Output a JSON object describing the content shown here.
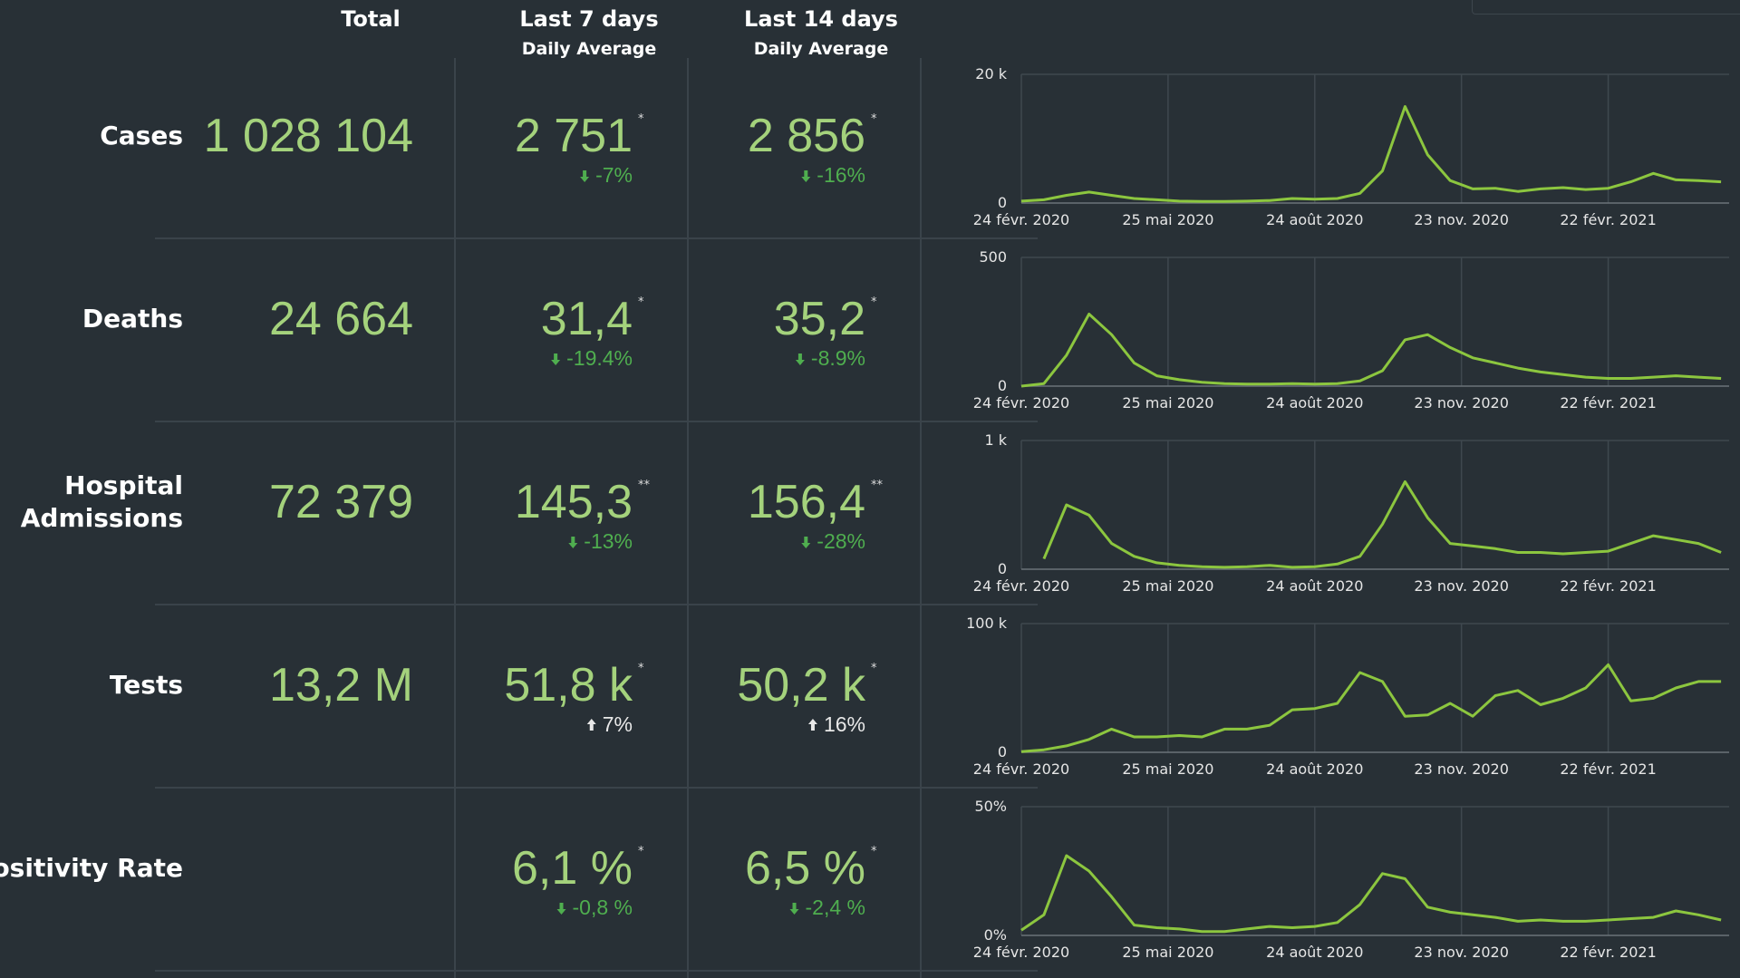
{
  "header": {
    "total": "Total",
    "last7": "Last 7 days",
    "last7_sub": "Daily Average",
    "last14": "Last 14 days",
    "last14_sub": "Daily Average"
  },
  "x": [
    "2020-02-24",
    "2020-03-09",
    "2020-03-23",
    "2020-04-06",
    "2020-04-20",
    "2020-05-04",
    "2020-05-18",
    "2020-06-01",
    "2020-06-15",
    "2020-06-29",
    "2020-07-13",
    "2020-07-27",
    "2020-08-10",
    "2020-08-24",
    "2020-09-07",
    "2020-09-21",
    "2020-10-05",
    "2020-10-19",
    "2020-11-02",
    "2020-11-16",
    "2020-11-30",
    "2020-12-14",
    "2020-12-28",
    "2021-01-11",
    "2021-01-25",
    "2021-02-08",
    "2021-02-22",
    "2021-03-08",
    "2021-03-22",
    "2021-04-05",
    "2021-04-19",
    "2021-05-03"
  ],
  "xlim": [
    "2020-02-24",
    "2021-05-08"
  ],
  "xticks": [
    {
      "value": "2020-02-24",
      "label": "24 févr. 2020"
    },
    {
      "value": "2020-05-25",
      "label": "25 mai 2020"
    },
    {
      "value": "2020-08-24",
      "label": "24 août 2020"
    },
    {
      "value": "2020-11-23",
      "label": "23 nov. 2020"
    },
    {
      "value": "2021-02-22",
      "label": "22 févr. 2021"
    }
  ],
  "line_color": "#8cc63f",
  "rows": [
    {
      "label": [
        "Cases"
      ],
      "total": "1 028 104",
      "last7": {
        "value": "2 751",
        "mark": "*",
        "change": "-7%",
        "trend": "down"
      },
      "last14": {
        "value": "2 856",
        "mark": "*",
        "change": "-16%",
        "trend": "down"
      },
      "chart": {
        "ylim": [
          0,
          20000
        ],
        "yticks": [
          0,
          {
            "value": 20000,
            "label": "20 k"
          }
        ],
        "values": [
          300,
          500,
          1200,
          1700,
          1200,
          700,
          500,
          300,
          250,
          250,
          300,
          400,
          700,
          600,
          700,
          1500,
          5000,
          15000,
          7500,
          3500,
          2200,
          2300,
          1800,
          2200,
          2400,
          2100,
          2300,
          3300,
          4600,
          3600,
          3500,
          3300
        ]
      }
    },
    {
      "label": [
        "Deaths"
      ],
      "total": "24 664",
      "last7": {
        "value": "31,4",
        "mark": "*",
        "change": "-19.4%",
        "trend": "down"
      },
      "last14": {
        "value": "35,2",
        "mark": "*",
        "change": "-8.9%",
        "trend": "down"
      },
      "chart": {
        "ylim": [
          0,
          500
        ],
        "yticks": [
          0,
          500
        ],
        "values": [
          0,
          10,
          120,
          280,
          200,
          90,
          40,
          25,
          15,
          10,
          8,
          8,
          10,
          8,
          10,
          20,
          60,
          180,
          200,
          150,
          110,
          90,
          70,
          55,
          45,
          35,
          30,
          30,
          35,
          40,
          35,
          30
        ]
      }
    },
    {
      "label": [
        "Hospital",
        "Admissions"
      ],
      "total": "72 379",
      "last7": {
        "value": "145,3",
        "mark": "**",
        "change": "-13%",
        "trend": "down"
      },
      "last14": {
        "value": "156,4",
        "mark": "**",
        "change": "-28%",
        "trend": "down"
      },
      "chart": {
        "ylim": [
          0,
          1000
        ],
        "yticks": [
          0,
          {
            "value": 1000,
            "label": "1 k"
          }
        ],
        "values": [
          null,
          80,
          500,
          420,
          200,
          100,
          50,
          30,
          20,
          15,
          20,
          30,
          15,
          20,
          40,
          100,
          350,
          680,
          400,
          200,
          180,
          160,
          130,
          130,
          120,
          130,
          140,
          200,
          260,
          230,
          200,
          130
        ]
      }
    },
    {
      "label": [
        "Tests"
      ],
      "total": "13,2 M",
      "last7": {
        "value": "51,8 k",
        "mark": "*",
        "change": "7%",
        "trend": "up"
      },
      "last14": {
        "value": "50,2 k",
        "mark": "*",
        "change": "16%",
        "trend": "up"
      },
      "chart": {
        "ylim": [
          0,
          100000
        ],
        "yticks": [
          0,
          {
            "value": 100000,
            "label": "100 k"
          }
        ],
        "values": [
          500,
          2000,
          5000,
          10000,
          18000,
          12000,
          12000,
          13000,
          12000,
          18000,
          18000,
          21000,
          33000,
          34000,
          38000,
          62000,
          55000,
          28000,
          29000,
          38000,
          28000,
          44000,
          48000,
          37000,
          42000,
          50000,
          68000,
          40000,
          42000,
          50000,
          55000,
          55000
        ]
      }
    },
    {
      "label": [
        "Positivity Rate"
      ],
      "last7": {
        "value": "6,1 %",
        "mark": "*",
        "change": "-0,8 %",
        "trend": "down"
      },
      "last14": {
        "value": "6,5 %",
        "mark": "*",
        "change": "-2,4 %",
        "trend": "down"
      },
      "chart": {
        "ylim": [
          0,
          50
        ],
        "yticks": [
          {
            "value": 0,
            "label": "0%"
          },
          {
            "value": 50,
            "label": "50%"
          }
        ],
        "values": [
          2,
          8,
          31,
          25,
          15,
          4,
          3,
          2.5,
          1.5,
          1.5,
          2.5,
          3.5,
          3,
          3.5,
          5,
          12,
          24,
          22,
          11,
          9,
          8,
          7,
          5.5,
          6,
          5.5,
          5.5,
          6,
          6.5,
          7,
          9.5,
          8,
          6
        ]
      }
    }
  ]
}
